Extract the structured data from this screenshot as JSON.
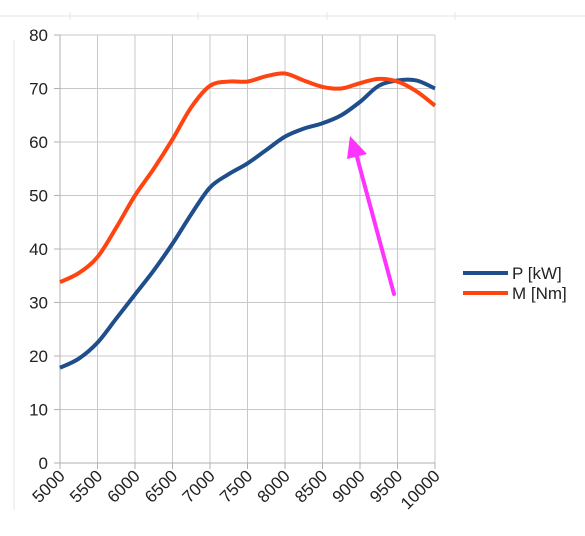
{
  "chart_data": {
    "type": "line",
    "title": "",
    "xlabel": "",
    "ylabel": "",
    "x": [
      5000,
      5250,
      5500,
      5750,
      6000,
      6250,
      6500,
      6750,
      7000,
      7250,
      7500,
      7750,
      8000,
      8250,
      8500,
      8750,
      9000,
      9250,
      9500,
      9750,
      10000
    ],
    "series": [
      {
        "name": "P [kW]",
        "color": "#1f4e8c",
        "values": [
          17.8,
          19.5,
          22.5,
          27,
          31.5,
          36,
          41,
          46.5,
          51.5,
          54,
          56,
          58.5,
          61,
          62.5,
          63.5,
          65,
          67.5,
          70.5,
          71.5,
          71.5,
          70
        ]
      },
      {
        "name": "M [Nm]",
        "color": "#ff4411",
        "values": [
          33.8,
          35.5,
          38.5,
          44,
          50,
          55,
          60.5,
          66.5,
          70.5,
          71.3,
          71.3,
          72.3,
          72.8,
          71.5,
          70.3,
          70,
          71,
          71.8,
          71.3,
          69.5,
          66.8
        ]
      }
    ],
    "xlim": [
      5000,
      10000
    ],
    "ylim": [
      0,
      80
    ],
    "x_ticks": [
      "5000",
      "5500",
      "6000",
      "6500",
      "7000",
      "7500",
      "8000",
      "8500",
      "9000",
      "9500",
      "10000"
    ],
    "y_ticks": [
      "0",
      "10",
      "20",
      "30",
      "40",
      "50",
      "60",
      "70",
      "80"
    ],
    "grid": true,
    "legend_position": "right",
    "annotation": {
      "type": "arrow",
      "color": "#ff33ff"
    }
  }
}
